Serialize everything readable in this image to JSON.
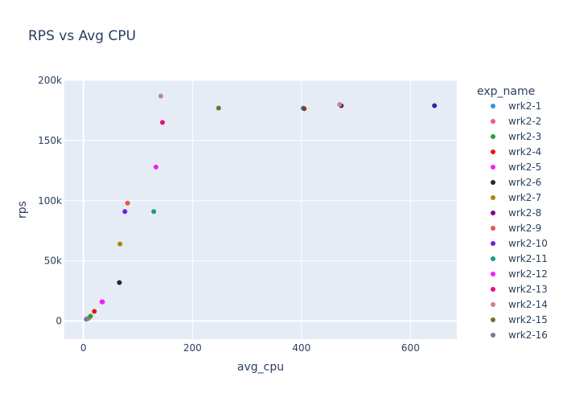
{
  "chart_data": {
    "type": "scatter",
    "title": "RPS vs Avg CPU",
    "xlabel": "avg_cpu",
    "ylabel": "rps",
    "xlim": [
      -35,
      685
    ],
    "ylim": [
      -15000,
      200000
    ],
    "x_ticks": [
      0,
      200,
      400,
      600
    ],
    "x_tick_labels": [
      "0",
      "200",
      "400",
      "600"
    ],
    "y_ticks": [
      0,
      50000,
      100000,
      150000,
      200000
    ],
    "y_tick_labels": [
      "0",
      "50k",
      "100k",
      "150k",
      "200k"
    ],
    "grid": true,
    "plot_background": "#e5ecf6",
    "legend": {
      "title": "exp_name",
      "placement": "right",
      "clipped": true
    },
    "series": [
      {
        "name": "wrk2-1",
        "color": "#3b8fd9",
        "points": [
          [
            8,
            2000
          ],
          [
            403,
            177000
          ]
        ]
      },
      {
        "name": "wrk2-2",
        "color": "#e65a8c",
        "points": [
          [
            10,
            2500
          ]
        ]
      },
      {
        "name": "wrk2-3",
        "color": "#2ca02c",
        "points": [
          [
            13,
            4000
          ]
        ]
      },
      {
        "name": "wrk2-4",
        "color": "#e8160c",
        "points": [
          [
            20,
            8000
          ]
        ]
      },
      {
        "name": "wrk2-5",
        "color": "#ef20f4",
        "points": [
          [
            34,
            16000
          ],
          [
            133,
            128000
          ]
        ]
      },
      {
        "name": "wrk2-6",
        "color": "#222a2a",
        "points": [
          [
            66,
            32000
          ]
        ]
      },
      {
        "name": "wrk2-7",
        "color": "#b68100",
        "points": [
          [
            67,
            64000
          ]
        ]
      },
      {
        "name": "wrk2-8",
        "color": "#750d86",
        "points": [
          [
            473,
            179000
          ]
        ]
      },
      {
        "name": "wrk2-9",
        "color": "#ef553b",
        "points": [
          [
            81,
            98000
          ]
        ]
      },
      {
        "name": "wrk2-10",
        "color": "#6222ee",
        "points": [
          [
            76,
            91000
          ]
        ]
      },
      {
        "name": "wrk2-11",
        "color": "#1a9a8a",
        "points": [
          [
            129,
            91000
          ]
        ]
      },
      {
        "name": "wrk2-12",
        "color": "#ef20f4",
        "points": [
          [
            35,
            16000
          ]
        ]
      },
      {
        "name": "wrk2-13",
        "color": "#f00b80",
        "points": [
          [
            145,
            165000
          ]
        ]
      },
      {
        "name": "wrk2-14",
        "color": "#c08497",
        "points": [
          [
            142,
            187000
          ],
          [
            470,
            180000
          ]
        ]
      },
      {
        "name": "wrk2-15",
        "color": "#6b7a2a",
        "points": [
          [
            248,
            177000
          ]
        ]
      },
      {
        "name": "wrk2-16",
        "color": "#6f7f9f",
        "points": [
          [
            5,
            1500
          ]
        ]
      }
    ],
    "extra_points": [
      {
        "color": "#8b3a2a",
        "x": 405,
        "y": 176500
      },
      {
        "color": "#262aa0",
        "x": 644,
        "y": 179000
      }
    ]
  }
}
